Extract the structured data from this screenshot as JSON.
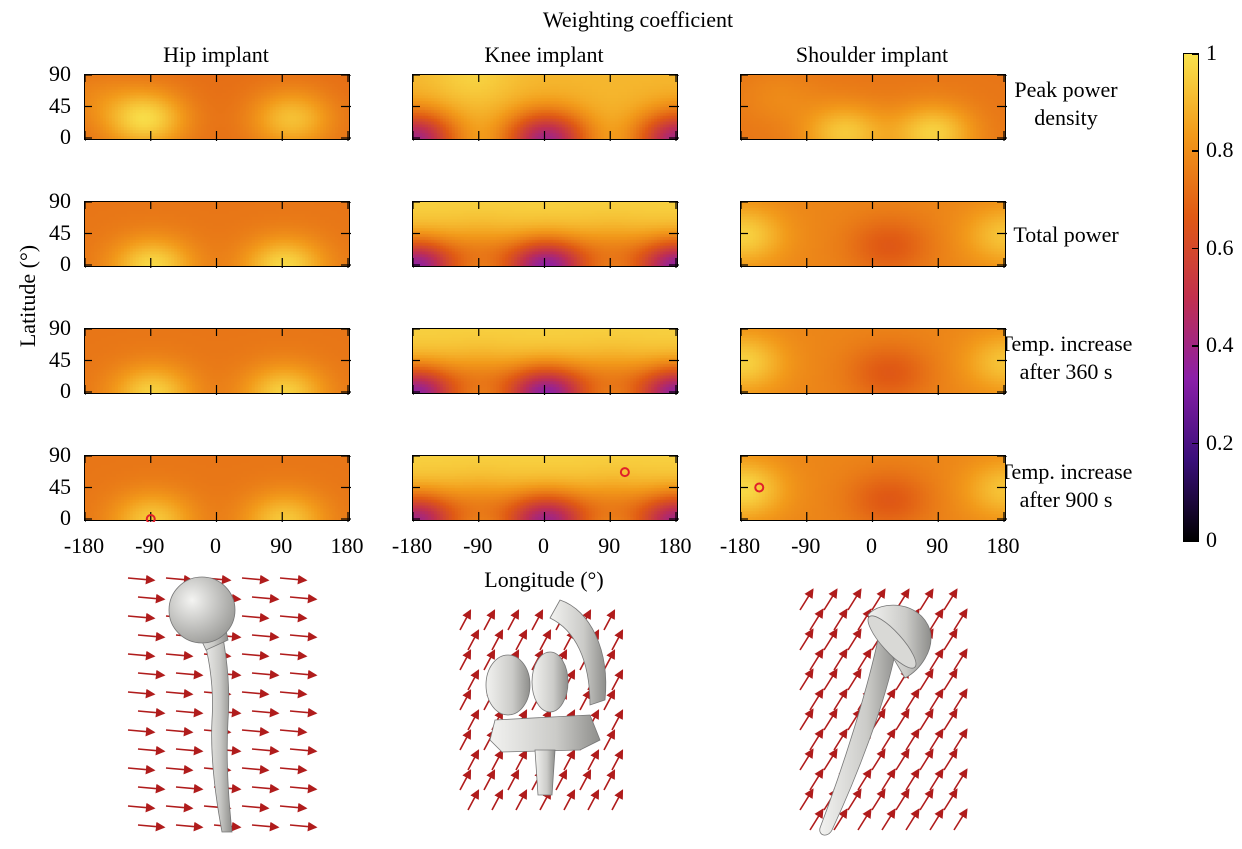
{
  "chart_data": {
    "type": "heatmap",
    "title": "Weighting coefficient",
    "xlabel": "Longitude (°)",
    "ylabel": "Latitude (°)",
    "columns": [
      "Hip implant",
      "Knee implant",
      "Shoulder implant"
    ],
    "rows": [
      [
        "Peak power",
        "density"
      ],
      [
        "Total power"
      ],
      [
        "Temp. increase",
        "after 360 s"
      ],
      [
        "Temp. increase",
        "after 900 s"
      ]
    ],
    "x_ticks": [
      "-180",
      "-90",
      "0",
      "90",
      "180"
    ],
    "y_ticks": [
      "90",
      "45",
      "0"
    ],
    "xlim": [
      -180,
      180
    ],
    "ylim": [
      0,
      90
    ],
    "colorbar": {
      "range": [
        0,
        1
      ],
      "ticks": [
        "1",
        "0.8",
        "0.6",
        "0.4",
        "0.2",
        "0"
      ],
      "colors": [
        "#000000",
        "#3a0f7a",
        "#8b1fa8",
        "#c2304e",
        "#e05a14",
        "#f29a1a",
        "#f9e24c"
      ]
    },
    "maxima_markers": [
      {
        "implant": "Hip implant",
        "row": "Temp. increase after 900 s",
        "lon": -90,
        "lat": 0
      },
      {
        "implant": "Knee implant",
        "row": "Temp. increase after 900 s",
        "lon": 110,
        "lat": 67
      },
      {
        "implant": "Shoulder implant",
        "row": "Temp. increase after 900 s",
        "lon": -155,
        "lat": 45
      }
    ],
    "marker_color": "#e0202a",
    "approx_fields": {
      "Hip implant": [
        {
          "base": 0.72,
          "peaks": [
            [
              -100,
              30,
              0.26
            ],
            [
              100,
              30,
              0.2
            ],
            [
              -170,
              60,
              0.05
            ]
          ]
        },
        {
          "base": 0.74,
          "peaks": [
            [
              -90,
              0,
              0.24
            ],
            [
              90,
              0,
              0.24
            ]
          ]
        },
        {
          "base": 0.74,
          "peaks": [
            [
              -90,
              0,
              0.22
            ],
            [
              90,
              0,
              0.22
            ]
          ]
        },
        {
          "base": 0.74,
          "peaks": [
            [
              -90,
              0,
              0.2
            ],
            [
              90,
              0,
              0.2
            ]
          ]
        }
      ],
      "Knee implant": [
        {
          "base": 0.9,
          "peaks": [
            [
              -180,
              0,
              -0.5
            ],
            [
              0,
              0,
              -0.5
            ],
            [
              180,
              0,
              -0.5
            ],
            [
              -100,
              90,
              0.06
            ]
          ]
        },
        {
          "base": 0.96,
          "peaks": [
            [
              -180,
              0,
              -0.6
            ],
            [
              0,
              0,
              -0.6
            ],
            [
              180,
              0,
              -0.6
            ],
            [
              -90,
              20,
              -0.15
            ],
            [
              90,
              20,
              -0.15
            ]
          ]
        },
        {
          "base": 0.96,
          "peaks": [
            [
              -180,
              0,
              -0.6
            ],
            [
              0,
              0,
              -0.6
            ],
            [
              180,
              0,
              -0.6
            ],
            [
              -90,
              20,
              -0.15
            ],
            [
              90,
              20,
              -0.15
            ]
          ]
        },
        {
          "base": 0.96,
          "peaks": [
            [
              -180,
              0,
              -0.55
            ],
            [
              0,
              0,
              -0.55
            ],
            [
              180,
              0,
              -0.55
            ],
            [
              -90,
              20,
              -0.15
            ],
            [
              90,
              20,
              -0.15
            ]
          ]
        }
      ],
      "Shoulder implant": [
        {
          "base": 0.74,
          "peaks": [
            [
              -40,
              10,
              0.2
            ],
            [
              80,
              10,
              0.22
            ],
            [
              -130,
              60,
              0.05
            ]
          ]
        },
        {
          "base": 0.78,
          "peaks": [
            [
              -180,
              45,
              0.18
            ],
            [
              180,
              45,
              0.15
            ],
            [
              20,
              30,
              -0.12
            ]
          ]
        },
        {
          "base": 0.78,
          "peaks": [
            [
              -180,
              45,
              0.18
            ],
            [
              180,
              45,
              0.15
            ],
            [
              20,
              30,
              -0.12
            ]
          ]
        },
        {
          "base": 0.78,
          "peaks": [
            [
              -180,
              45,
              0.2
            ],
            [
              180,
              45,
              0.15
            ],
            [
              20,
              30,
              -0.12
            ]
          ]
        }
      ]
    }
  }
}
